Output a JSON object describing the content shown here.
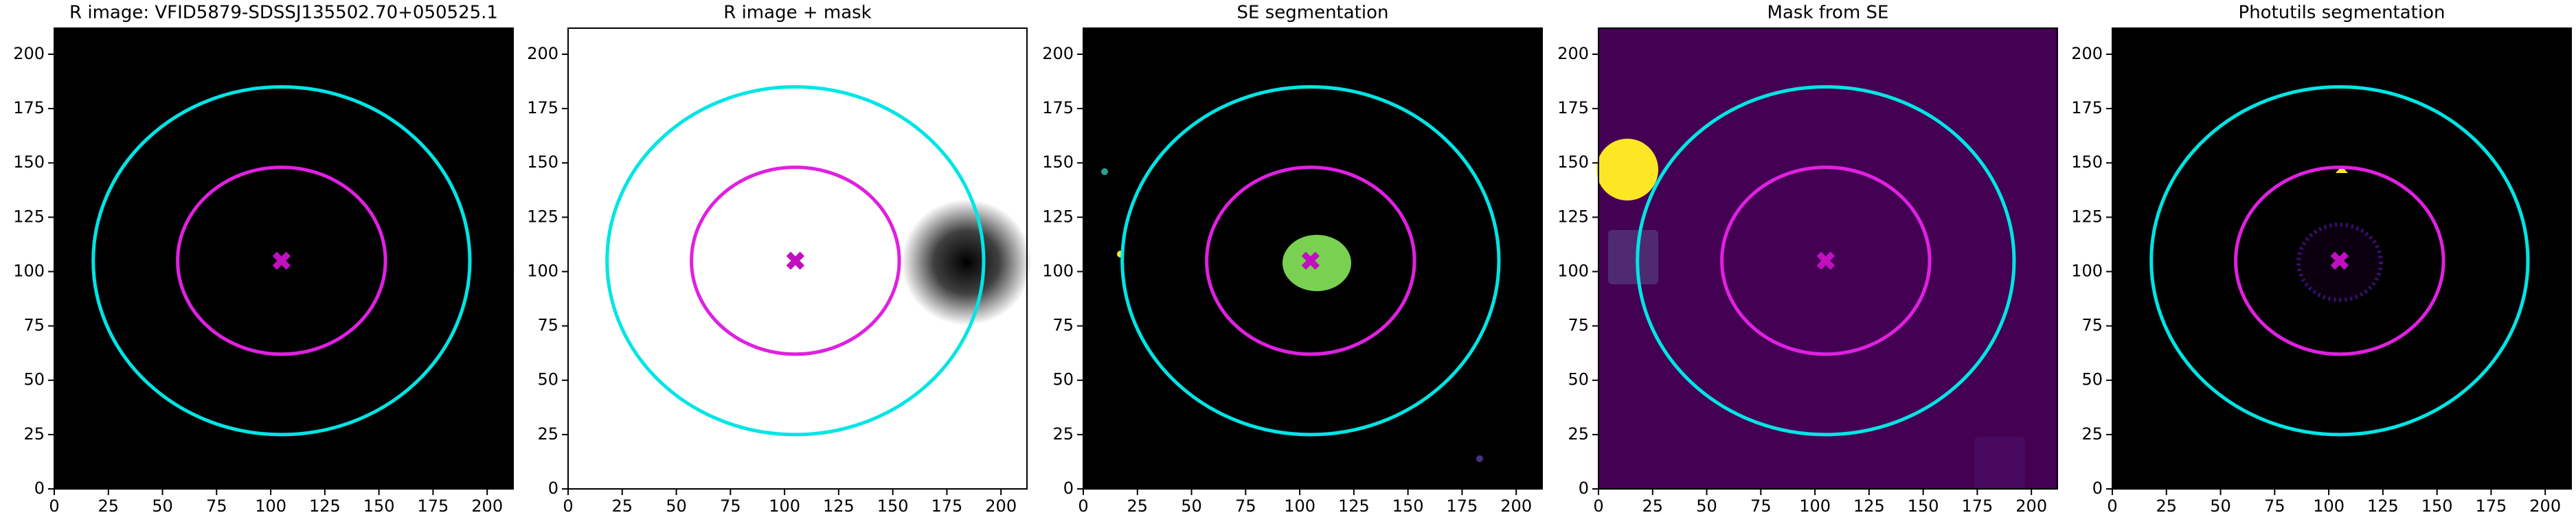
{
  "chart_data": [
    {
      "type": "image",
      "title": "R image: VFID5879-SDSSJ135502.70+050525.1",
      "background": "dark-noise",
      "xlim": [
        0,
        212
      ],
      "ylim": [
        0,
        212
      ],
      "xticks": [
        0,
        25,
        50,
        75,
        100,
        125,
        150,
        175,
        200
      ],
      "yticks": [
        0,
        25,
        50,
        75,
        100,
        125,
        150,
        175,
        200
      ],
      "ellipses": [
        {
          "center": [
            105,
            105
          ],
          "width": 87,
          "height": 80,
          "color": "#00e5e5"
        },
        {
          "center": [
            105,
            105
          ],
          "width": 48,
          "height": 43,
          "color": "#e020e0"
        }
      ],
      "marker": {
        "x": 105,
        "y": 105,
        "color": "#c010c0"
      }
    },
    {
      "type": "image",
      "title": "R image + mask",
      "background": "light-noise",
      "xlim": [
        0,
        212
      ],
      "ylim": [
        0,
        212
      ],
      "xticks": [
        0,
        25,
        50,
        75,
        100,
        125,
        150,
        175,
        200
      ],
      "yticks": [
        0,
        25,
        50,
        75,
        100,
        125,
        150,
        175,
        200
      ],
      "ellipses": [
        {
          "center": [
            105,
            105
          ],
          "width": 87,
          "height": 80,
          "color": "#00e5e5"
        },
        {
          "center": [
            105,
            105
          ],
          "width": 48,
          "height": 43,
          "color": "#e020e0"
        }
      ],
      "marker": {
        "x": 105,
        "y": 105,
        "color": "#c010c0"
      }
    },
    {
      "type": "image",
      "title": "SE segmentation",
      "background": "#000000",
      "xlim": [
        0,
        212
      ],
      "ylim": [
        0,
        212
      ],
      "xticks": [
        0,
        25,
        50,
        75,
        100,
        125,
        150,
        175,
        200
      ],
      "yticks": [
        0,
        25,
        50,
        75,
        100,
        125,
        150,
        175,
        200
      ],
      "ellipses": [
        {
          "center": [
            105,
            105
          ],
          "width": 87,
          "height": 80,
          "color": "#00e5e5"
        },
        {
          "center": [
            105,
            105
          ],
          "width": 48,
          "height": 43,
          "color": "#e020e0"
        }
      ],
      "marker": {
        "x": 105,
        "y": 105,
        "color": "#c010c0"
      }
    },
    {
      "type": "image",
      "title": "Mask from SE",
      "background": "#440154",
      "xlim": [
        0,
        212
      ],
      "ylim": [
        0,
        212
      ],
      "xticks": [
        0,
        25,
        50,
        75,
        100,
        125,
        150,
        175,
        200
      ],
      "yticks": [
        0,
        25,
        50,
        75,
        100,
        125,
        150,
        175,
        200
      ],
      "ellipses": [
        {
          "center": [
            105,
            105
          ],
          "width": 87,
          "height": 80,
          "color": "#00e5e5"
        },
        {
          "center": [
            105,
            105
          ],
          "width": 48,
          "height": 43,
          "color": "#e020e0"
        }
      ],
      "marker": {
        "x": 105,
        "y": 105,
        "color": "#c010c0"
      }
    },
    {
      "type": "image",
      "title": "Photutils segmentation",
      "background": "#000000",
      "xlim": [
        0,
        212
      ],
      "ylim": [
        0,
        212
      ],
      "xticks": [
        0,
        25,
        50,
        75,
        100,
        125,
        150,
        175,
        200
      ],
      "yticks": [
        0,
        25,
        50,
        75,
        100,
        125,
        150,
        175,
        200
      ],
      "ellipses": [
        {
          "center": [
            105,
            105
          ],
          "width": 87,
          "height": 80,
          "color": "#00e5e5"
        },
        {
          "center": [
            105,
            105
          ],
          "width": 48,
          "height": 43,
          "color": "#e020e0"
        }
      ],
      "marker": {
        "x": 105,
        "y": 105,
        "color": "#c010c0"
      }
    }
  ]
}
